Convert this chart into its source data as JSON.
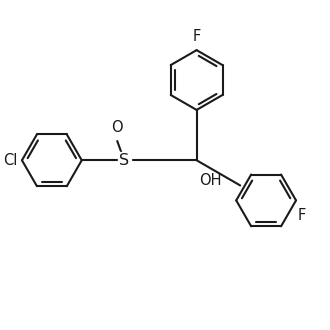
{
  "background_color": "#ffffff",
  "line_color": "#1a1a1a",
  "line_width": 1.5,
  "font_size": 10.5,
  "figsize": [
    3.3,
    3.3
  ],
  "dpi": 100,
  "xlim": [
    0,
    10
  ],
  "ylim": [
    0,
    10
  ]
}
